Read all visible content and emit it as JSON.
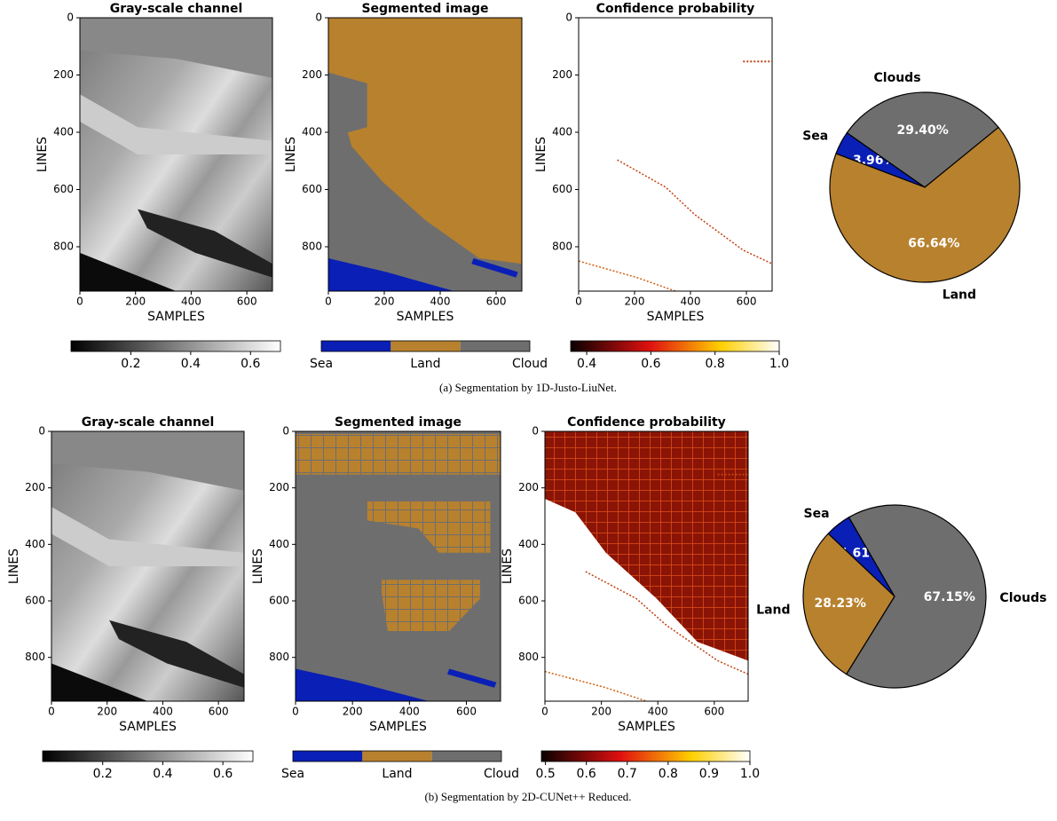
{
  "chart_data": [
    {
      "type": "image",
      "colormap": "gray",
      "title": "Gray-scale channel",
      "xlabel": "SAMPLES",
      "ylabel": "LINES",
      "xlim": [
        0,
        692
      ],
      "ylim": [
        955,
        0
      ],
      "xticks": [
        0,
        200,
        400,
        600
      ],
      "yticks": [
        0,
        200,
        400,
        600,
        800
      ],
      "colorbar": {
        "lim": [
          0,
          0.7
        ],
        "ticks": [
          0.2,
          0.4,
          0.6
        ]
      }
    },
    {
      "type": "image",
      "colormap": "segmented",
      "title": "Segmented image",
      "xlabel": "SAMPLES",
      "ylabel": "LINES",
      "xlim": [
        0,
        692
      ],
      "ylim": [
        955,
        0
      ],
      "xticks": [
        0,
        200,
        400,
        600
      ],
      "yticks": [
        0,
        200,
        400,
        600,
        800
      ],
      "colorbar": {
        "labels": [
          "Sea",
          "Land",
          "Cloud"
        ],
        "colors": [
          "#0a1fb5",
          "#b8812e",
          "#6e6e6e"
        ]
      }
    },
    {
      "type": "image",
      "colormap": "hot",
      "title": "Confidence probability",
      "xlabel": "SAMPLES",
      "ylabel": "LINES",
      "xlim": [
        0,
        692
      ],
      "ylim": [
        955,
        0
      ],
      "xticks": [
        0,
        200,
        400,
        600
      ],
      "yticks": [
        0,
        200,
        400,
        600,
        800
      ],
      "colorbar": {
        "lim": [
          0.35,
          1.0
        ],
        "ticks": [
          0.4,
          0.6,
          0.8,
          {
            "value": 1,
            "label": "1.0"
          }
        ]
      }
    },
    {
      "type": "pie",
      "labels": [
        "Sea",
        "Land",
        "Clouds"
      ],
      "values": [
        3.96,
        66.64,
        29.4
      ],
      "value_labels": [
        "3.96%",
        "66.64%",
        "29.40%"
      ],
      "colors": [
        "#0a1fb5",
        "#b8812e",
        "#6e6e6e"
      ],
      "startangle": 145
    },
    {
      "type": "image",
      "colormap": "gray",
      "title": "Gray-scale channel",
      "xlabel": "SAMPLES",
      "ylabel": "LINES",
      "xlim": [
        0,
        692
      ],
      "ylim": [
        955,
        0
      ],
      "xticks": [
        0,
        200,
        400,
        600
      ],
      "yticks": [
        0,
        200,
        400,
        600,
        800
      ],
      "colorbar": {
        "lim": [
          0,
          0.7
        ],
        "ticks": [
          0.2,
          0.4,
          0.6
        ]
      }
    },
    {
      "type": "image",
      "colormap": "segmented",
      "title": "Segmented image",
      "xlabel": "SAMPLES",
      "ylabel": "LINES",
      "xlim": [
        0,
        720
      ],
      "ylim": [
        955,
        0
      ],
      "xticks": [
        0,
        200,
        400,
        600
      ],
      "yticks": [
        0,
        200,
        400,
        600,
        800
      ],
      "colorbar": {
        "labels": [
          "Sea",
          "Land",
          "Cloud"
        ],
        "colors": [
          "#0a1fb5",
          "#b8812e",
          "#6e6e6e"
        ]
      }
    },
    {
      "type": "image",
      "colormap": "hot",
      "title": "Confidence probability",
      "xlabel": "SAMPLES",
      "ylabel": "LINES",
      "xlim": [
        0,
        720
      ],
      "ylim": [
        955,
        0
      ],
      "xticks": [
        0,
        200,
        400,
        600
      ],
      "yticks": [
        0,
        200,
        400,
        600,
        800
      ],
      "colorbar": {
        "lim": [
          0.49,
          1.0
        ],
        "ticks": [
          0.5,
          0.6,
          0.7,
          0.8,
          0.9,
          {
            "value": 1,
            "label": "1.0"
          }
        ]
      }
    },
    {
      "type": "pie",
      "labels": [
        "Sea",
        "Land",
        "Clouds"
      ],
      "values": [
        4.61,
        28.23,
        67.15
      ],
      "value_labels": [
        "4.61%",
        "28.23%",
        "67.15%"
      ],
      "colors": [
        "#0a1fb5",
        "#b8812e",
        "#6e6e6e"
      ],
      "startangle": 120
    }
  ],
  "captions": [
    "(a) Segmentation by 1D-Justo-LiuNet.",
    "(b) Segmentation by 2D-CUNet++ Reduced."
  ]
}
